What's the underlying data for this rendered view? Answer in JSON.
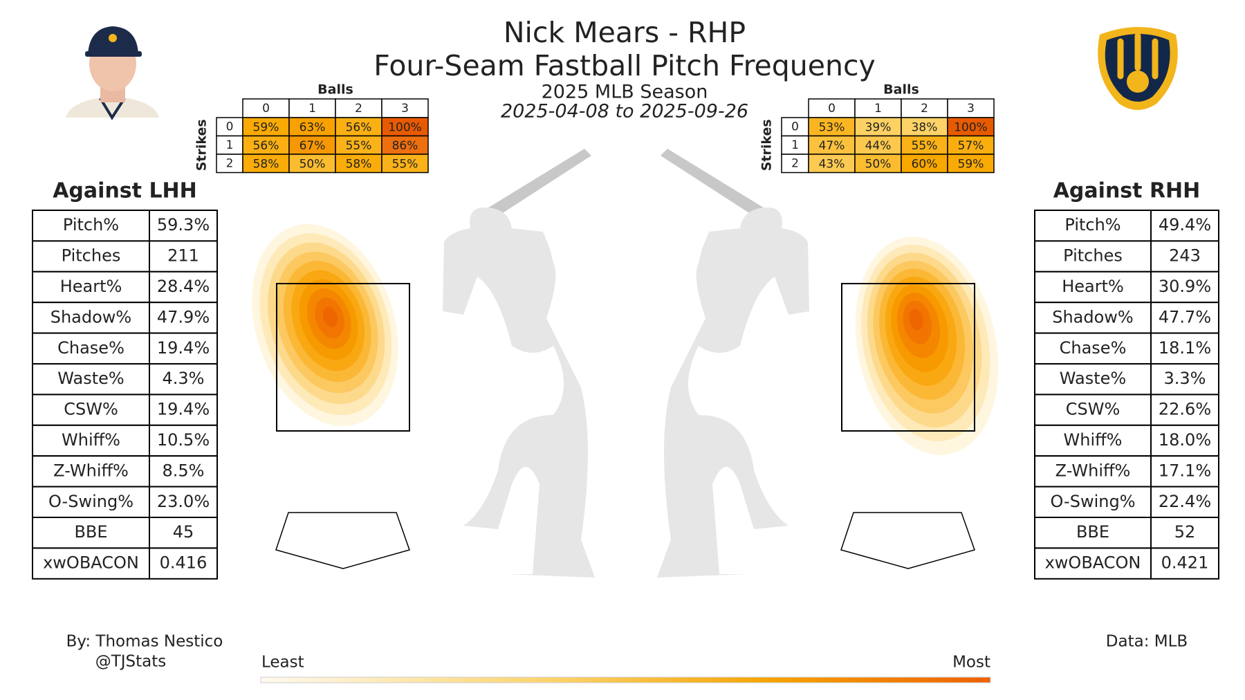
{
  "header": {
    "title": "Nick Mears - RHP",
    "subtitle": "Four-Seam Fastball Pitch Frequency",
    "season": "2025 MLB Season",
    "dates": "2025-04-08 to 2025-09-26"
  },
  "count_tables": [
    {
      "balls_label": "Balls",
      "strikes_label": "Strikes",
      "balls": [
        "0",
        "1",
        "2",
        "3"
      ],
      "strikes": [
        "0",
        "1",
        "2"
      ],
      "cells": [
        [
          "59%",
          "63%",
          "56%",
          "100%"
        ],
        [
          "56%",
          "67%",
          "55%",
          "86%"
        ],
        [
          "58%",
          "50%",
          "58%",
          "55%"
        ]
      ]
    },
    {
      "balls_label": "Balls",
      "strikes_label": "Strikes",
      "balls": [
        "0",
        "1",
        "2",
        "3"
      ],
      "strikes": [
        "0",
        "1",
        "2"
      ],
      "cells": [
        [
          "53%",
          "39%",
          "38%",
          "100%"
        ],
        [
          "47%",
          "44%",
          "55%",
          "57%"
        ],
        [
          "43%",
          "50%",
          "60%",
          "59%"
        ]
      ]
    }
  ],
  "splits": [
    {
      "title": "Against LHH",
      "rows": [
        [
          "Pitch%",
          "59.3%"
        ],
        [
          "Pitches",
          "211"
        ],
        [
          "Heart%",
          "28.4%"
        ],
        [
          "Shadow%",
          "47.9%"
        ],
        [
          "Chase%",
          "19.4%"
        ],
        [
          "Waste%",
          "4.3%"
        ],
        [
          "CSW%",
          "19.4%"
        ],
        [
          "Whiff%",
          "10.5%"
        ],
        [
          "Z-Whiff%",
          "8.5%"
        ],
        [
          "O-Swing%",
          "23.0%"
        ],
        [
          "BBE",
          "45"
        ],
        [
          "xwOBACON",
          "0.416"
        ]
      ]
    },
    {
      "title": "Against RHH",
      "rows": [
        [
          "Pitch%",
          "49.4%"
        ],
        [
          "Pitches",
          "243"
        ],
        [
          "Heart%",
          "30.9%"
        ],
        [
          "Shadow%",
          "47.7%"
        ],
        [
          "Chase%",
          "18.1%"
        ],
        [
          "Waste%",
          "3.3%"
        ],
        [
          "CSW%",
          "22.6%"
        ],
        [
          "Whiff%",
          "18.0%"
        ],
        [
          "Z-Whiff%",
          "17.1%"
        ],
        [
          "O-Swing%",
          "22.4%"
        ],
        [
          "BBE",
          "52"
        ],
        [
          "xwOBACON",
          "0.421"
        ]
      ]
    }
  ],
  "legend": {
    "least": "Least",
    "most": "Most"
  },
  "footer": {
    "author": "By: Thomas Nestico",
    "handle": "@TJStats",
    "source": "Data: MLB"
  }
}
